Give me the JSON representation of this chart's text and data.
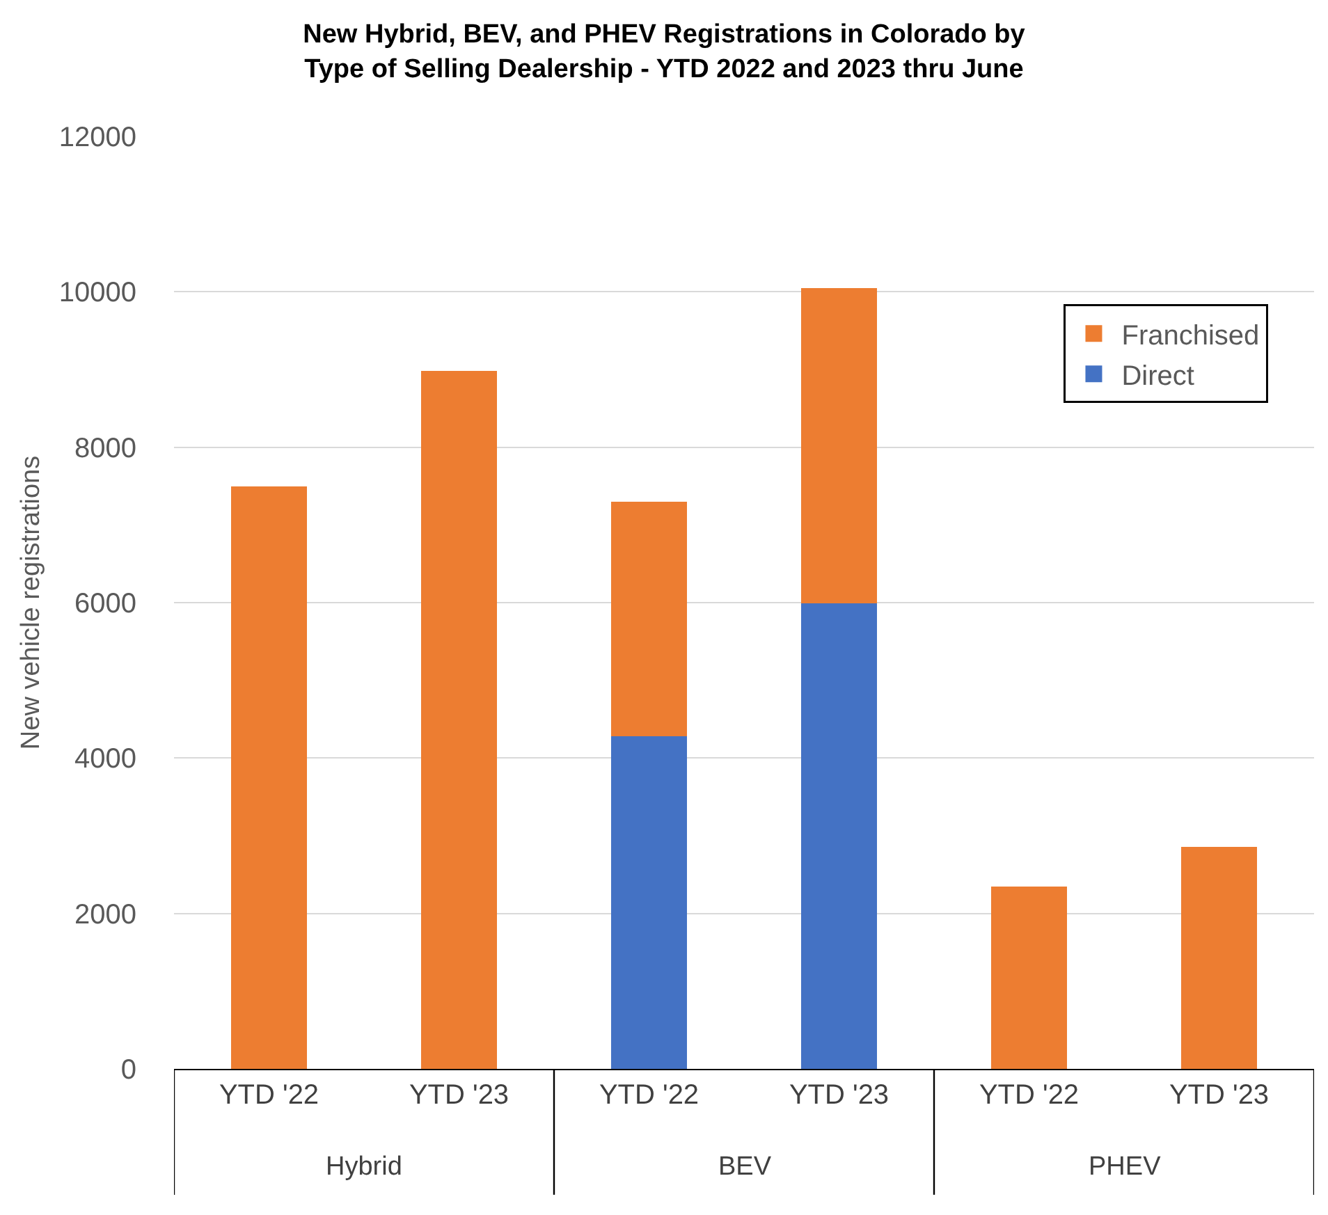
{
  "chart_data": {
    "type": "bar",
    "title": "New Hybrid, BEV, and PHEV Registrations in Colorado by\nType of Selling Dealership - YTD 2022 and 2023 thru June",
    "ylabel": "New vehicle registrations",
    "categories": [
      "YTD '22",
      "YTD '23",
      "YTD '22",
      "YTD '23",
      "YTD '22",
      "YTD '23"
    ],
    "series": [
      {
        "name": "Direct",
        "color": "#4472c4",
        "values": [
          null,
          null,
          4280,
          5990,
          null,
          null
        ]
      },
      {
        "name": "Franchised",
        "color": "#ed7d31",
        "values": [
          7500,
          8980,
          3020,
          4060,
          2350,
          2860
        ]
      }
    ],
    "stacked": true,
    "ylim": [
      0,
      12000
    ],
    "yticks": [
      0,
      2000,
      4000,
      6000,
      8000,
      10000,
      12000
    ],
    "grid": "y",
    "legend": "top right",
    "annotations": [
      "Hybrid",
      "BEV",
      "PHEV"
    ]
  }
}
